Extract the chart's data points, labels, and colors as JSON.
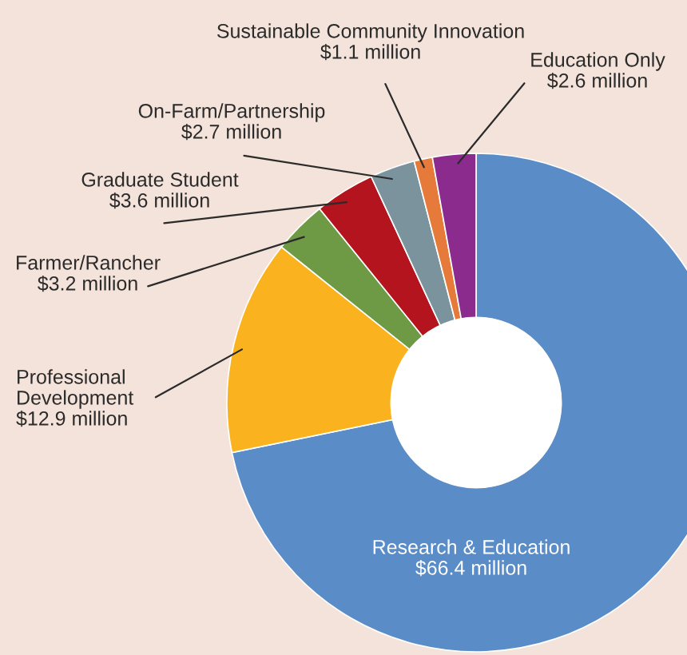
{
  "chart_data": {
    "type": "donut",
    "categories": [
      "Research & Education",
      "Professional Development",
      "Farmer/Rancher",
      "Graduate Student",
      "On-Farm/Partnership",
      "Sustainable Community Innovation",
      "Education Only"
    ],
    "values": [
      66.4,
      12.9,
      3.2,
      3.6,
      2.7,
      1.1,
      2.6
    ],
    "value_labels": [
      "$66.4 million",
      "$12.9 million",
      "$3.2 million",
      "$3.6 million",
      "$2.7 million",
      "$1.1 million",
      "$2.6 million"
    ],
    "colors": [
      "#5a8dc8",
      "#fbb21f",
      "#6e9a45",
      "#b3141d",
      "#7b939d",
      "#e57a3a",
      "#8b2b8e"
    ]
  }
}
